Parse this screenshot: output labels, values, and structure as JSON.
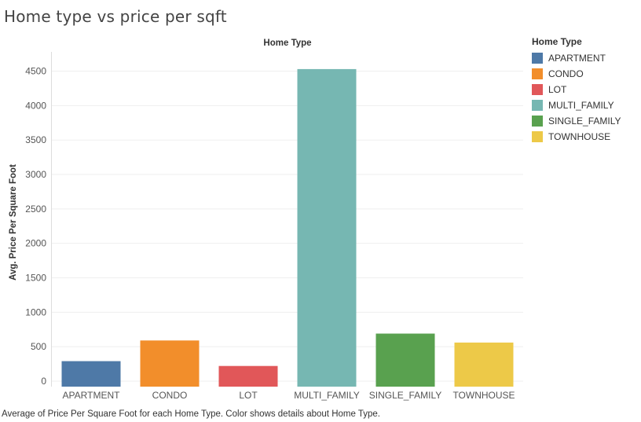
{
  "title": "Home type vs price per sqft",
  "caption": "Average of Price Per Square Foot for each Home Type.  Color shows details about Home Type.",
  "legend": {
    "title": "Home Type",
    "items": [
      {
        "label": "APARTMENT",
        "color": "#4e79a7"
      },
      {
        "label": "CONDO",
        "color": "#f28e2b"
      },
      {
        "label": "LOT",
        "color": "#e15759"
      },
      {
        "label": "MULTI_FAMILY",
        "color": "#76b7b2"
      },
      {
        "label": "SINGLE_FAMILY",
        "color": "#59a14f"
      },
      {
        "label": "TOWNHOUSE",
        "color": "#edc948"
      }
    ]
  },
  "chart_data": {
    "type": "bar",
    "title": "Home type vs price per sqft",
    "xlabel": "Home Type",
    "ylabel": "Avg. Price Per Square Foot",
    "categories": [
      "APARTMENT",
      "CONDO",
      "LOT",
      "MULTI_FAMILY",
      "SINGLE_FAMILY",
      "TOWNHOUSE"
    ],
    "values": [
      290,
      590,
      220,
      4530,
      690,
      560
    ],
    "colors": [
      "#4e79a7",
      "#f28e2b",
      "#e15759",
      "#76b7b2",
      "#59a14f",
      "#edc948"
    ],
    "yticks": [
      0,
      500,
      1000,
      1500,
      2000,
      2500,
      3000,
      3500,
      4000,
      4500
    ],
    "ylim": [
      -80,
      4780
    ],
    "grid": true,
    "legend_position": "right"
  }
}
